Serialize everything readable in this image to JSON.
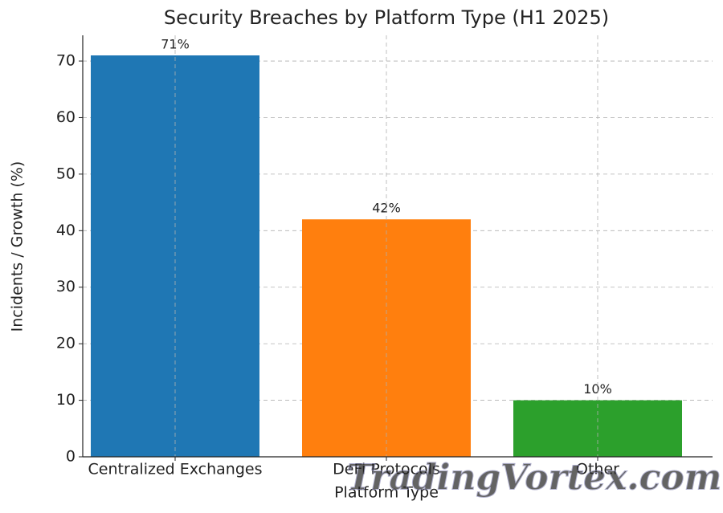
{
  "chart_data": {
    "type": "bar",
    "title": "Security Breaches by Platform Type (H1 2025)",
    "x_label": "Platform Type",
    "y_label": "Incidents / Growth (%)",
    "categories": [
      "Centralized Exchanges",
      "DeFi Protocols",
      "Other"
    ],
    "values": [
      71,
      42,
      10
    ],
    "value_labels": [
      "71%",
      "42%",
      "10%"
    ],
    "colors": [
      "#1f77b4",
      "#ff7f0e",
      "#2ca02c"
    ],
    "ylim": [
      0,
      74.55
    ],
    "yticks": [
      0,
      10,
      20,
      30,
      40,
      50,
      60,
      70
    ],
    "grid": true,
    "watermark": "TradingVortex.com"
  }
}
